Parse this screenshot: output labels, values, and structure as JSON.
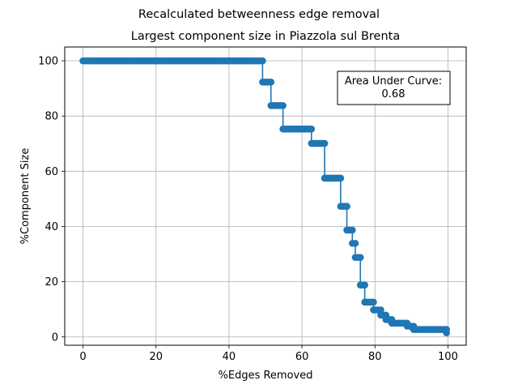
{
  "chart_data": {
    "type": "line",
    "suptitle": "Recalculated betweenness edge removal",
    "title": "Largest component size in Piazzola sul Brenta",
    "xlabel": "%Edges Removed",
    "ylabel": "%Component Size",
    "xlim": [
      -5,
      105
    ],
    "ylim": [
      -3,
      105
    ],
    "xticks": [
      0,
      20,
      40,
      60,
      80,
      100
    ],
    "yticks": [
      0,
      20,
      40,
      60,
      80,
      100
    ],
    "grid": true,
    "annotation": {
      "line1": "Area Under Curve:",
      "line2": "0.68",
      "placement": "top-right"
    },
    "series_color": "#1f77b4",
    "steps": [
      [
        0,
        49.2,
        100
      ],
      [
        49.2,
        51.5,
        92.3
      ],
      [
        51.5,
        54.8,
        83.8
      ],
      [
        54.8,
        62.6,
        75.3
      ],
      [
        62.6,
        66.2,
        70.1
      ],
      [
        66.2,
        70.6,
        57.5
      ],
      [
        70.6,
        72.3,
        47.3
      ],
      [
        72.3,
        73.8,
        38.7
      ],
      [
        73.8,
        74.6,
        33.9
      ],
      [
        74.6,
        76.0,
        28.8
      ],
      [
        76.0,
        77.2,
        18.8
      ],
      [
        77.2,
        79.6,
        12.6
      ],
      [
        79.6,
        81.6,
        9.8
      ],
      [
        81.6,
        83.0,
        7.9
      ],
      [
        83.0,
        84.6,
        6.3
      ],
      [
        84.6,
        88.8,
        5.0
      ],
      [
        88.8,
        90.6,
        3.9
      ],
      [
        90.6,
        99.6,
        2.7
      ],
      [
        99.6,
        100,
        1.5
      ]
    ]
  }
}
